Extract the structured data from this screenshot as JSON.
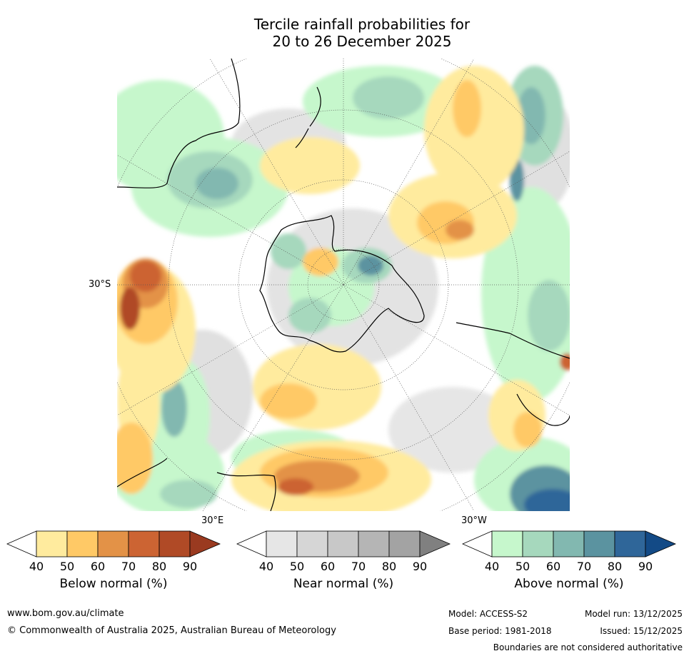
{
  "title_line1": "Tercile rainfall probabilities for",
  "title_line2": "20 to 26 December 2025",
  "map_labels": {
    "lat": "30°S",
    "lon_east": "30°E",
    "lon_west": "30°W"
  },
  "legends": [
    {
      "title": "Below normal (%)",
      "ticks": [
        "40",
        "50",
        "60",
        "70",
        "80",
        "90"
      ],
      "colors": [
        "#ffffff",
        "#ffeb9e",
        "#ffc966",
        "#e39247",
        "#cc6433",
        "#b04a26",
        "#9a3a20"
      ]
    },
    {
      "title": "Near normal (%)",
      "ticks": [
        "40",
        "50",
        "60",
        "70",
        "80",
        "90"
      ],
      "colors": [
        "#ffffff",
        "#e6e6e6",
        "#d6d6d6",
        "#c8c8c8",
        "#b5b5b5",
        "#a3a3a3",
        "#808080"
      ]
    },
    {
      "title": "Above normal (%)",
      "ticks": [
        "40",
        "50",
        "60",
        "70",
        "80",
        "90"
      ],
      "colors": [
        "#ffffff",
        "#c6f7cc",
        "#a6d8bd",
        "#82b8b0",
        "#5b93a0",
        "#2f6699",
        "#134a86"
      ]
    }
  ],
  "footer": {
    "url": "www.bom.gov.au/climate",
    "copyright": "© Commonwealth of Australia 2025, Australian Bureau of Meteorology",
    "model": "Model: ACCESS-S2",
    "model_run": "Model run: 13/12/2025",
    "base_period": "Base period: 1981-2018",
    "issued": "Issued: 15/12/2025",
    "disclaimer": "Boundaries are not considered authoritative"
  }
}
